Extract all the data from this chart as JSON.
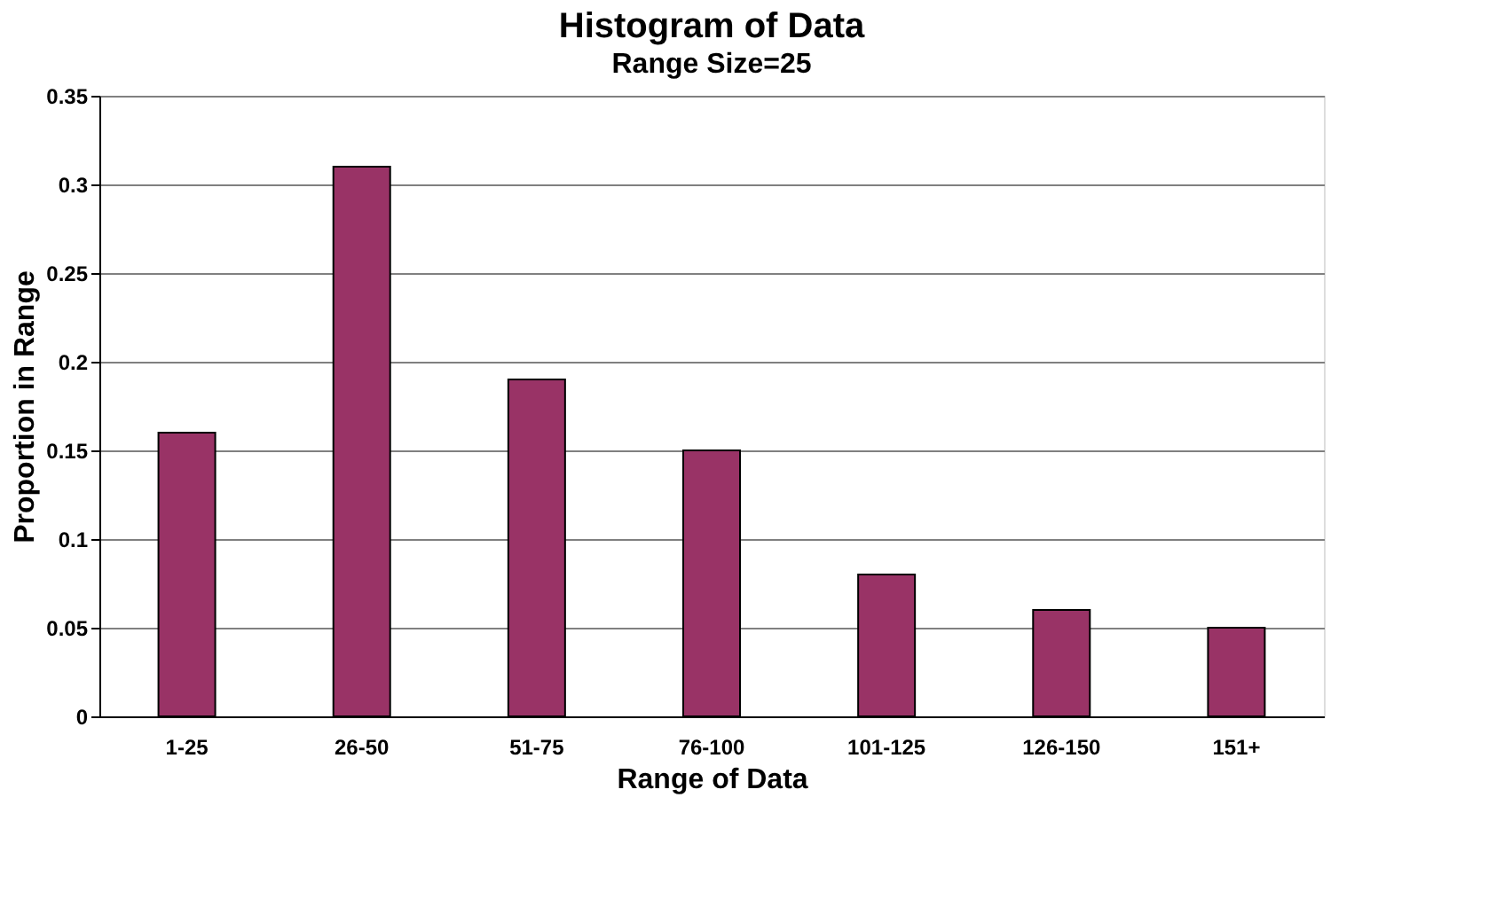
{
  "chart_data": {
    "type": "bar",
    "title": "Histogram of Data",
    "subtitle": "Range Size=25",
    "xlabel": "Range of Data",
    "ylabel": "Proportion in Range",
    "categories": [
      "1-25",
      "26-50",
      "51-75",
      "76-100",
      "101-125",
      "126-150",
      "151+"
    ],
    "values": [
      0.16,
      0.31,
      0.19,
      0.15,
      0.08,
      0.06,
      0.05
    ],
    "color": "#993366",
    "ylim": [
      0,
      0.35
    ],
    "yticks": [
      0,
      0.05,
      0.1,
      0.15,
      0.2,
      0.25,
      0.3,
      0.35
    ],
    "grid": "y"
  }
}
